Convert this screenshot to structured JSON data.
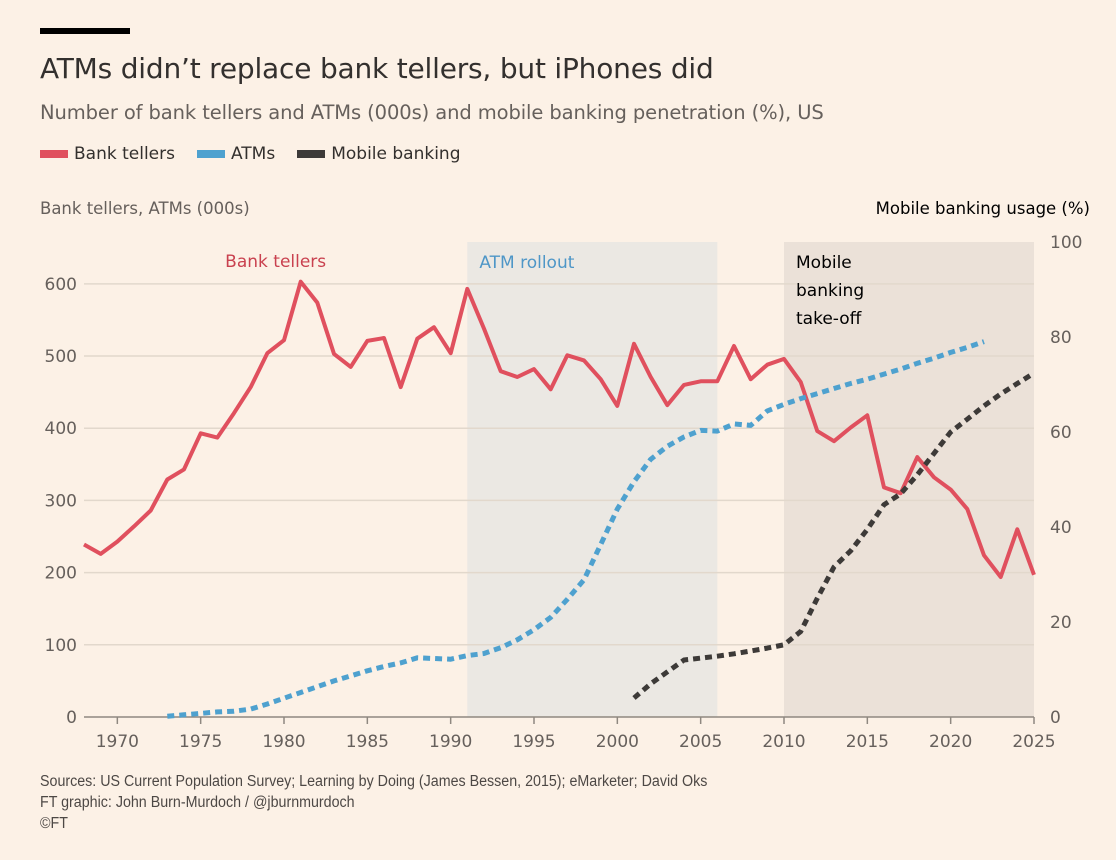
{
  "header": {
    "title": "ATMs didn’t replace bank tellers, but iPhones did",
    "subtitle": "Number of bank tellers and ATMs (000s) and mobile banking penetration (%), US"
  },
  "legend": [
    {
      "label": "Bank tellers",
      "color": "#e0505e"
    },
    {
      "label": "ATMs",
      "color": "#4ea1cf"
    },
    {
      "label": "Mobile banking",
      "color": "#3d3a38"
    }
  ],
  "footer": {
    "sources": "Sources: US Current Population Survey; Learning by Doing (James Bessen, 2015); eMarketer; David Oks",
    "credit": "FT graphic: John Burn-Murdoch / @jburnmurdoch",
    "copyright": "©FT"
  },
  "chart_data": {
    "type": "line",
    "title": "ATMs didn’t replace bank tellers, but iPhones did",
    "subtitle": "Number of bank tellers and ATMs (000s) and mobile banking penetration (%), US",
    "xlabel": "",
    "ylabel": "Bank tellers, ATMs (000s)",
    "ylabel_right": "Mobile banking usage (%)",
    "xlim": [
      1968,
      2025
    ],
    "ylim": [
      0,
      658
    ],
    "ylim_right": [
      0,
      100
    ],
    "xticks": [
      1970,
      1975,
      1980,
      1985,
      1990,
      1995,
      2000,
      2005,
      2010,
      2015,
      2020,
      2025
    ],
    "yticks": [
      0,
      100,
      200,
      300,
      400,
      500,
      600
    ],
    "yticks_right": [
      0,
      20,
      40,
      60,
      80,
      100
    ],
    "grid": true,
    "legend_position": "top-left",
    "shaded_regions": [
      {
        "label": "ATM rollout",
        "start": 1991,
        "end": 2006,
        "color": "#ebe8e3",
        "label_color": "#4e96c7"
      },
      {
        "label": "Mobile banking take-off",
        "label_lines": [
          "Mobile",
          "banking",
          "take-off"
        ],
        "start": 2010,
        "end": 2025,
        "color": "#ebe1d8",
        "label_color": "#000000"
      }
    ],
    "annotations": [
      {
        "text": "Bank tellers",
        "x": 1979.5,
        "y": 630,
        "color": "#c9414f"
      }
    ],
    "series": [
      {
        "name": "Bank tellers",
        "axis": "left",
        "color": "#e0505e",
        "style": "solid",
        "x": [
          1968,
          1969,
          1970,
          1971,
          1972,
          1973,
          1974,
          1975,
          1976,
          1977,
          1978,
          1979,
          1980,
          1981,
          1982,
          1983,
          1984,
          1985,
          1986,
          1987,
          1988,
          1989,
          1990,
          1991,
          1992,
          1993,
          1994,
          1995,
          1996,
          1997,
          1998,
          1999,
          2000,
          2001,
          2002,
          2003,
          2004,
          2005,
          2006,
          2007,
          2008,
          2009,
          2010,
          2011,
          2012,
          2013,
          2014,
          2015,
          2016,
          2017,
          2018,
          2019,
          2020,
          2021,
          2022,
          2023,
          2024,
          2025
        ],
        "values": [
          239,
          226,
          243,
          264,
          286,
          329,
          343,
          393,
          387,
          421,
          457,
          504,
          522,
          603,
          574,
          503,
          485,
          521,
          525,
          457,
          524,
          540,
          504,
          593,
          538,
          479,
          471,
          482,
          454,
          501,
          494,
          468,
          431,
          517,
          471,
          432,
          460,
          465,
          465,
          514,
          468,
          488,
          496,
          464,
          396,
          382,
          401,
          418,
          318,
          310,
          360,
          332,
          315,
          288,
          224,
          194,
          260,
          197
        ]
      },
      {
        "name": "ATMs",
        "axis": "left",
        "color": "#4ea1cf",
        "style": "dashed",
        "x": [
          1973,
          1974,
          1975,
          1976,
          1977,
          1978,
          1979,
          1980,
          1981,
          1982,
          1983,
          1984,
          1985,
          1986,
          1987,
          1988,
          1989,
          1990,
          1991,
          1992,
          1993,
          1994,
          1995,
          1996,
          1997,
          1998,
          1999,
          2000,
          2001,
          2002,
          2003,
          2004,
          2005,
          2006,
          2007,
          2008,
          2009,
          2010,
          2011,
          2012,
          2013,
          2014,
          2015,
          2016,
          2017,
          2018,
          2019,
          2020,
          2021,
          2022
        ],
        "values": [
          1,
          3,
          5,
          7,
          8,
          11,
          18,
          26,
          34,
          42,
          50,
          57,
          64,
          70,
          75,
          82,
          81,
          80,
          85,
          88,
          96,
          107,
          121,
          138,
          163,
          190,
          239,
          288,
          326,
          357,
          375,
          388,
          397,
          396,
          406,
          404,
          424,
          433,
          441,
          448,
          455,
          462,
          468,
          475,
          482,
          490,
          497,
          505,
          512,
          520
        ]
      },
      {
        "name": "Mobile banking",
        "axis": "right",
        "color": "#3d3a38",
        "style": "dashed",
        "x": [
          2001,
          2002,
          2003,
          2004,
          2005,
          2006,
          2007,
          2008,
          2009,
          2010,
          2011,
          2012,
          2013,
          2014,
          2015,
          2016,
          2017,
          2018,
          2019,
          2020,
          2021,
          2022,
          2023,
          2024,
          2025
        ],
        "values": [
          4,
          7,
          9.5,
          12,
          12.4,
          12.8,
          13.3,
          13.9,
          14.5,
          15.2,
          18,
          25,
          31.6,
          35,
          39.5,
          44.7,
          47,
          51,
          55.5,
          60,
          62.7,
          65.5,
          68,
          70.2,
          72.4
        ]
      }
    ]
  }
}
